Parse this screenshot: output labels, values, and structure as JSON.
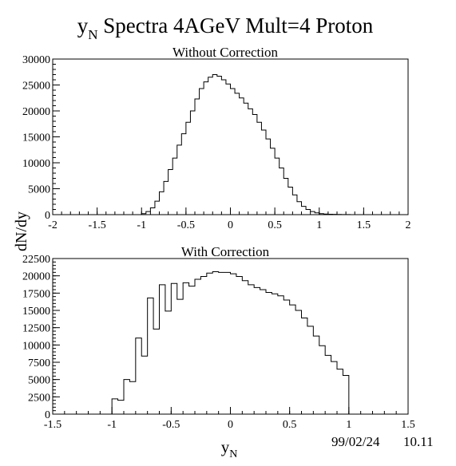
{
  "page": {
    "title_main": "y",
    "title_sub": "N",
    "title_rest": " Spectra 4AGeV Mult=4 Proton",
    "ylabel": "dN/dy",
    "xlabel_main": "y",
    "xlabel_sub": "N",
    "date": "99/02/24",
    "time": "10.11"
  },
  "chart_data": [
    {
      "type": "bar",
      "style": "step-histogram",
      "title": "Without Correction",
      "xlim": [
        -2,
        2
      ],
      "ylim": [
        0,
        30000
      ],
      "xticks": [
        -2,
        -1.5,
        -1,
        -0.5,
        0,
        0.5,
        1,
        1.5,
        2
      ],
      "xtick_labels": [
        "-2",
        "-1.5",
        "-1",
        "-0.5",
        "0",
        "0.5",
        "1",
        "1.5",
        "2"
      ],
      "yticks": [
        0,
        5000,
        10000,
        15000,
        20000,
        25000,
        30000
      ],
      "ytick_labels": [
        "0",
        "5000",
        "10000",
        "15000",
        "20000",
        "25000",
        "30000"
      ],
      "bin_width": 0.05,
      "bin_edges_start": -1.0,
      "values": [
        200,
        600,
        1300,
        2600,
        4400,
        6400,
        8700,
        10900,
        13400,
        15600,
        17800,
        20000,
        22300,
        24300,
        25600,
        26500,
        27000,
        26700,
        26000,
        25200,
        24300,
        23400,
        22500,
        21500,
        20400,
        19300,
        17800,
        16300,
        14600,
        12800,
        10900,
        9000,
        7000,
        5300,
        3800,
        2500,
        1600,
        1000,
        600,
        350,
        200,
        120,
        80,
        50,
        30,
        20,
        10,
        5
      ]
    },
    {
      "type": "bar",
      "style": "step-histogram",
      "title": "With Correction",
      "xlim": [
        -1.5,
        1.5
      ],
      "ylim": [
        0,
        22500
      ],
      "xticks": [
        -1.5,
        -1,
        -0.5,
        0,
        0.5,
        1,
        1.5
      ],
      "xtick_labels": [
        "-1.5",
        "-1",
        "-0.5",
        "0",
        "0.5",
        "1",
        "1.5"
      ],
      "yticks": [
        0,
        2500,
        5000,
        7500,
        10000,
        12500,
        15000,
        17500,
        20000,
        22500
      ],
      "ytick_labels": [
        "0",
        "2500",
        "5000",
        "7500",
        "10000",
        "12500",
        "15000",
        "17500",
        "20000",
        "22500"
      ],
      "bin_width": 0.05,
      "bin_edges_start": -1.0,
      "values": [
        2200,
        2000,
        5000,
        4700,
        11000,
        8400,
        16800,
        12300,
        18700,
        14900,
        18900,
        16600,
        19000,
        18500,
        19500,
        19900,
        20400,
        20600,
        20500,
        20500,
        20300,
        19900,
        19300,
        18700,
        18300,
        18000,
        17600,
        17400,
        17100,
        16500,
        15800,
        15000,
        13900,
        12700,
        11300,
        9900,
        8500,
        7600,
        6500,
        5600
      ]
    }
  ]
}
